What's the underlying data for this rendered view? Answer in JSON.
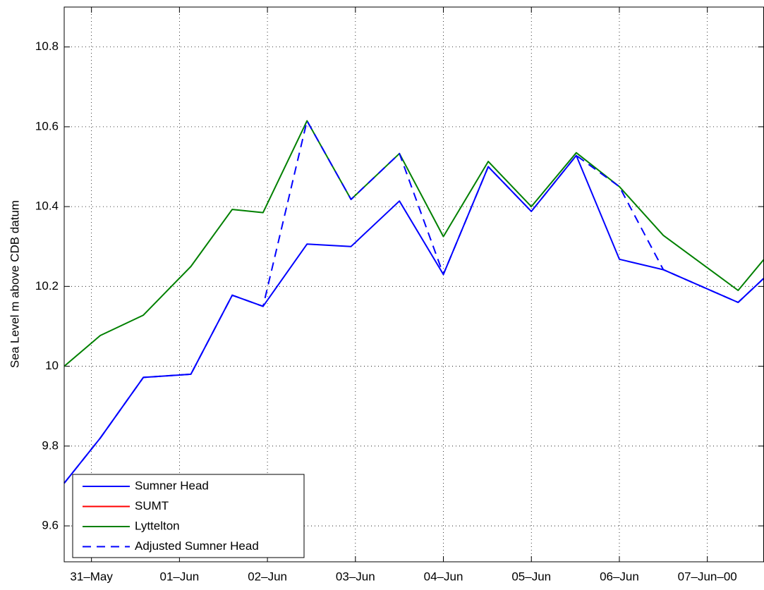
{
  "chart_data": {
    "type": "line",
    "y_label": "Sea Level m above CDB datum",
    "x": [
      -0.31,
      0.1,
      0.59,
      1.13,
      1.6,
      1.95,
      2.45,
      2.95,
      3.5,
      4.0,
      4.51,
      5.0,
      5.51,
      6.0,
      6.5,
      7.35,
      7.64
    ],
    "series": [
      {
        "name": "Sumner Head",
        "color": "#0000ff",
        "line_style": "solid",
        "values": [
          9.707,
          9.82,
          9.972,
          9.98,
          10.178,
          10.15,
          10.306,
          10.3,
          10.414,
          10.23,
          10.5,
          10.388,
          10.528,
          10.268,
          10.242,
          10.16,
          10.22
        ]
      },
      {
        "name": "SUMT",
        "color": "#ff0000",
        "line_style": "solid",
        "values": [
          null,
          null,
          null,
          null,
          null,
          null,
          null,
          null,
          null,
          null,
          null,
          null,
          null,
          null,
          null,
          null,
          null
        ]
      },
      {
        "name": "Lyttelton",
        "color": "#008000",
        "line_style": "solid",
        "values": [
          10.0,
          10.077,
          10.128,
          10.25,
          10.393,
          10.385,
          10.615,
          10.418,
          10.533,
          10.325,
          10.513,
          10.4,
          10.535,
          10.45,
          10.328,
          10.19,
          10.267
        ]
      },
      {
        "name": "Adjusted Sumner Head",
        "color": "#0000ff",
        "line_style": "dashed",
        "values": [
          9.707,
          9.82,
          9.972,
          9.98,
          10.178,
          10.15,
          10.615,
          10.418,
          10.533,
          10.23,
          10.5,
          10.388,
          10.528,
          10.45,
          10.242,
          10.16,
          10.22
        ]
      }
    ],
    "xlim": [
      -0.31,
      7.64
    ],
    "xticks": [
      {
        "value": 0,
        "label": "31–May"
      },
      {
        "value": 1,
        "label": "01–Jun"
      },
      {
        "value": 2,
        "label": "02–Jun"
      },
      {
        "value": 3,
        "label": "03–Jun"
      },
      {
        "value": 4,
        "label": "04–Jun"
      },
      {
        "value": 5,
        "label": "05–Jun"
      },
      {
        "value": 6,
        "label": "06–Jun"
      },
      {
        "value": 7,
        "label": "07–Jun–00"
      }
    ],
    "ylim": [
      9.51,
      10.9
    ],
    "yticks": [
      {
        "value": 9.6,
        "label": "9.6"
      },
      {
        "value": 9.8,
        "label": "9.8"
      },
      {
        "value": 10,
        "label": "10"
      },
      {
        "value": 10.2,
        "label": "10.2"
      },
      {
        "value": 10.4,
        "label": "10.4"
      },
      {
        "value": 10.6,
        "label": "10.6"
      },
      {
        "value": 10.8,
        "label": "10.8"
      }
    ],
    "grid": true,
    "legend": "lower left"
  }
}
